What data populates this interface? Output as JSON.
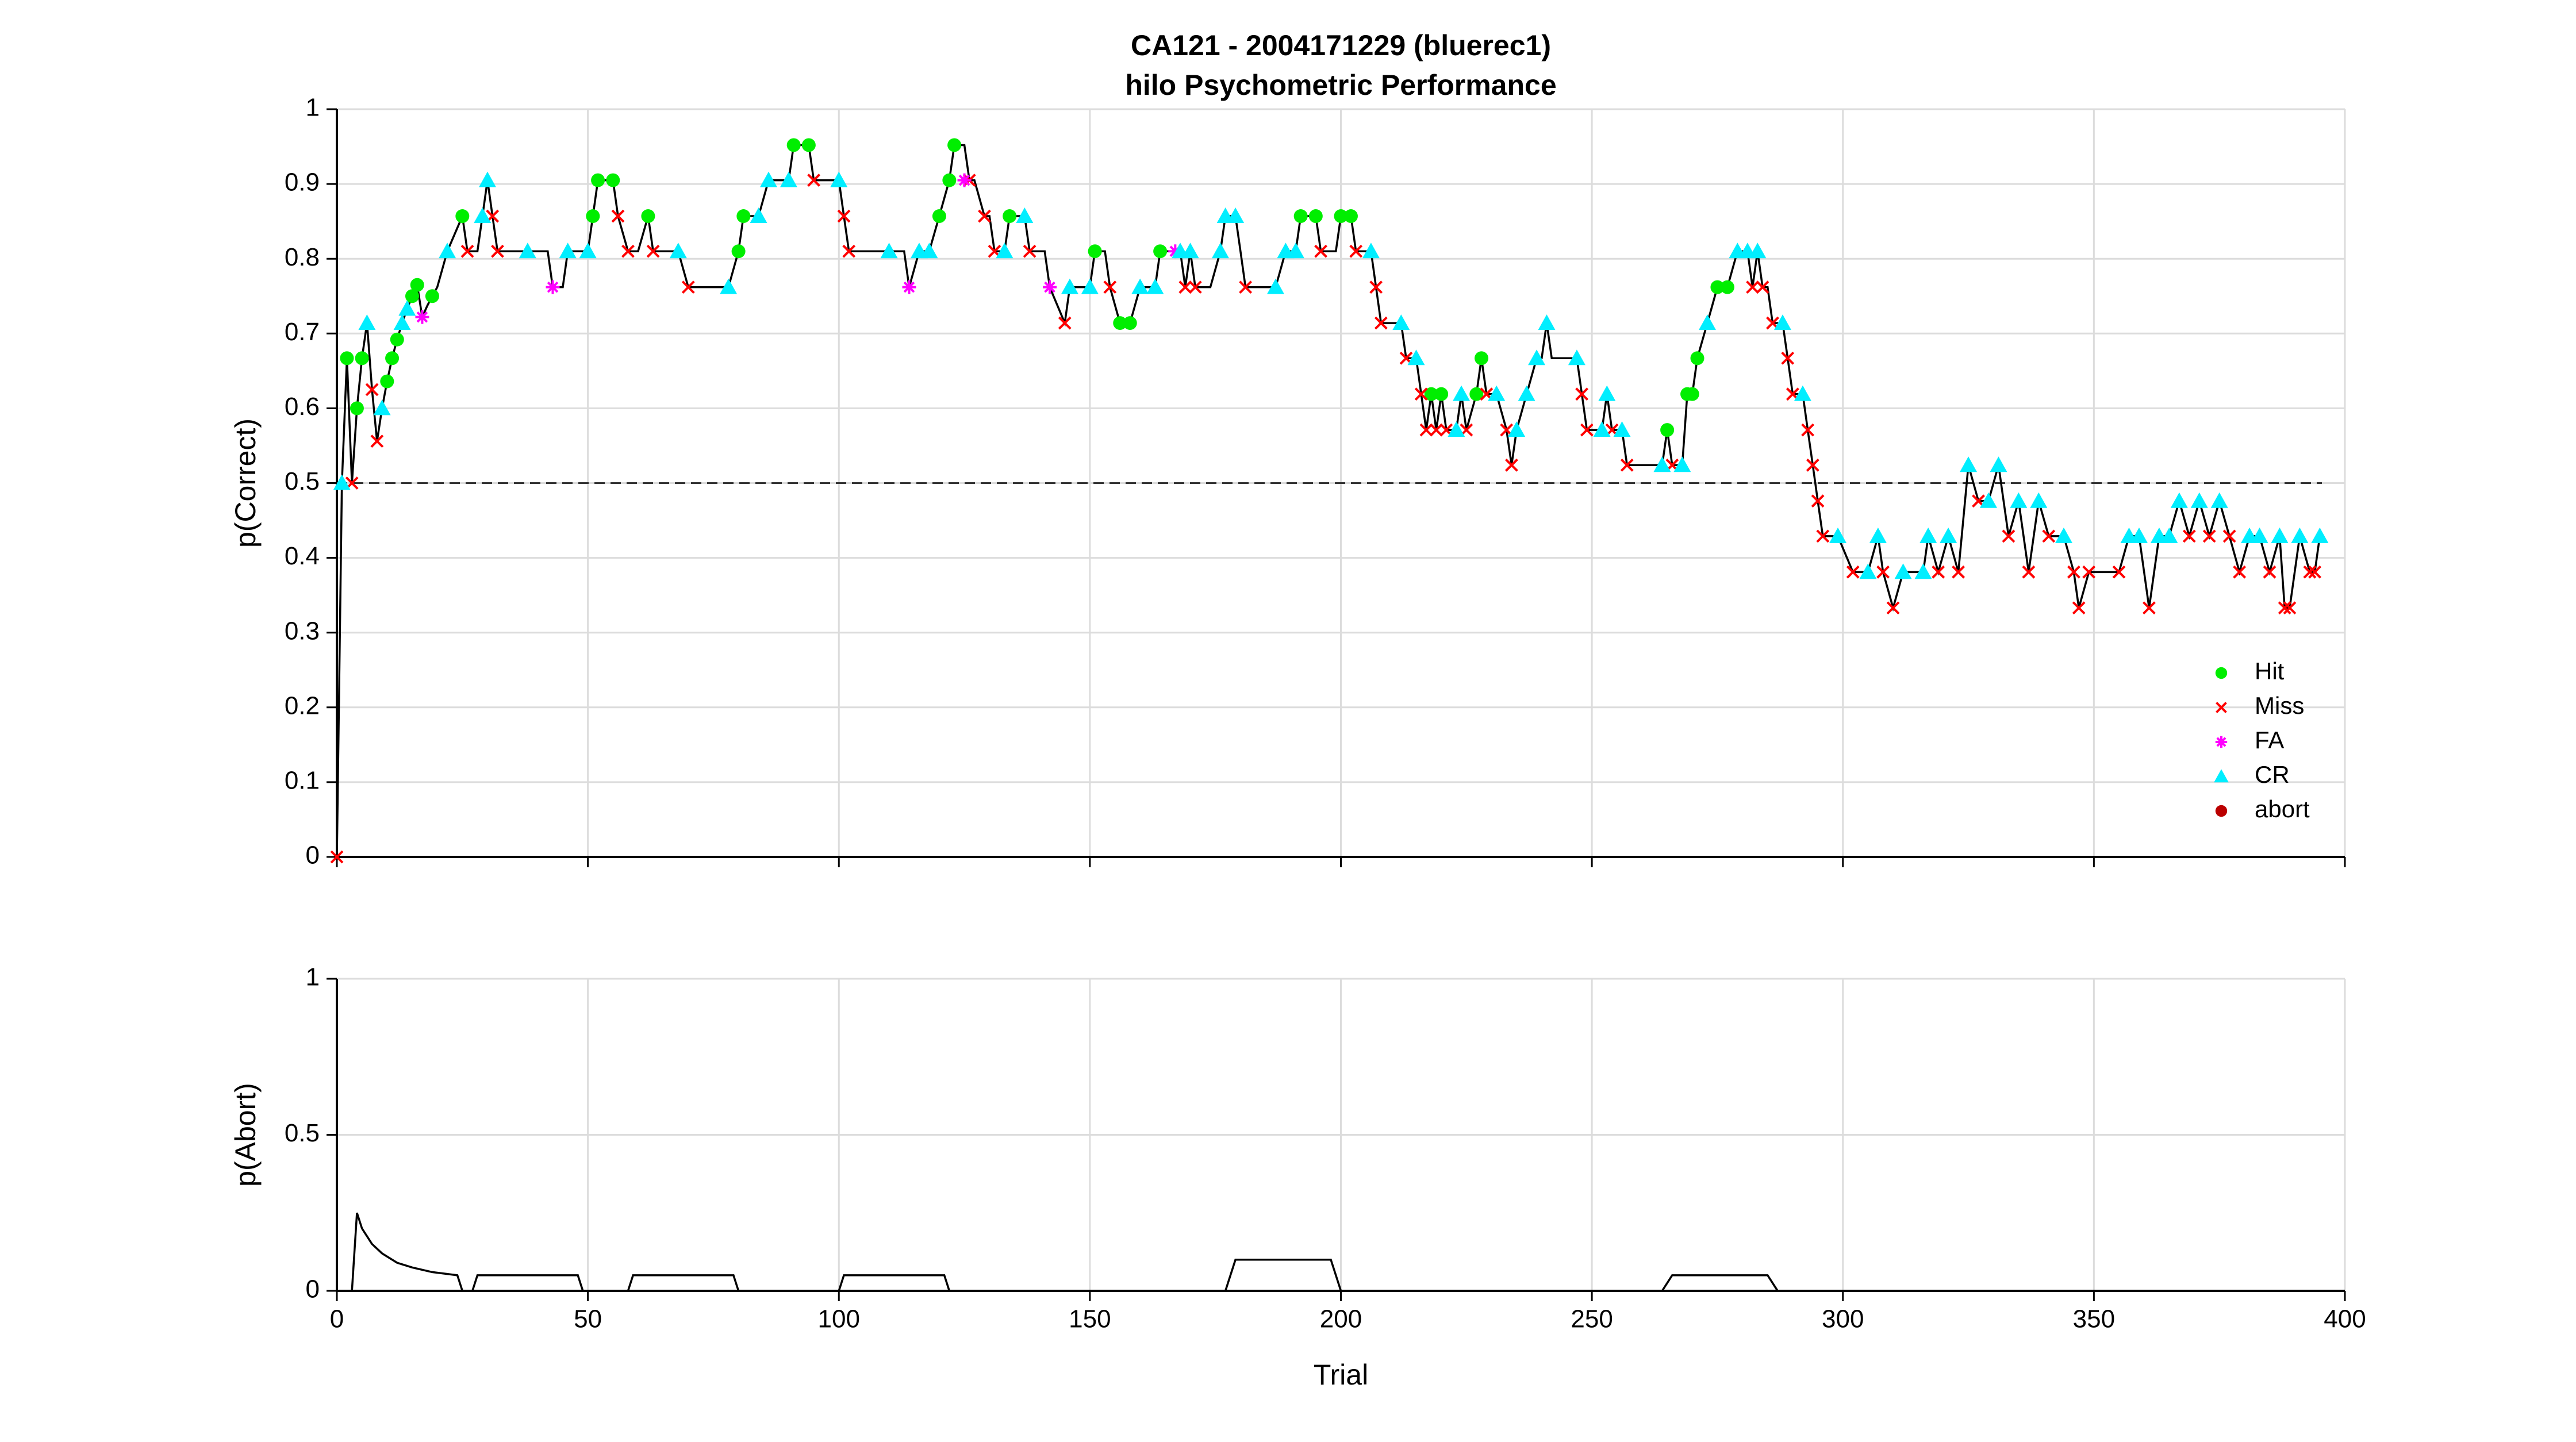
{
  "chart_data": [
    {
      "type": "line",
      "title": "CA121 - 2004171229 (bluerec1)",
      "subtitle": "hilo Psychometric Performance",
      "ylabel": "p(Correct)",
      "xlim": [
        0,
        400
      ],
      "ylim": [
        0,
        1
      ],
      "xticks": [
        0,
        50,
        100,
        150,
        200,
        250,
        300,
        350,
        400
      ],
      "show_xtick_labels": false,
      "yticks": [
        0,
        0.1,
        0.2,
        0.3,
        0.4,
        0.5,
        0.6,
        0.7,
        0.8,
        0.9,
        1
      ],
      "grid": true,
      "reference_line": {
        "y": 0.5,
        "style": "dashed",
        "color": "#333333"
      },
      "line": {
        "color": "#000000",
        "x": [
          0,
          1,
          2,
          3,
          4,
          5,
          6,
          7,
          8,
          9,
          10,
          11,
          12,
          13,
          14,
          15,
          16,
          17,
          18,
          19,
          20,
          22,
          25,
          26,
          28,
          29,
          30,
          31,
          32,
          38,
          42,
          43,
          45,
          46,
          50,
          51,
          52,
          55,
          56,
          58,
          60,
          62,
          63,
          68,
          70,
          78,
          80,
          81,
          84,
          86,
          90,
          91,
          94,
          95,
          100,
          101,
          102,
          113,
          114,
          116,
          118,
          120,
          122,
          123,
          125,
          126,
          127,
          129,
          130,
          131,
          133,
          134,
          137,
          138,
          141,
          142,
          145,
          146,
          150,
          151,
          153,
          154,
          156,
          158,
          160,
          163,
          164,
          168,
          169,
          170,
          171,
          174,
          176,
          177,
          179,
          180,
          181,
          187,
          189,
          191,
          192,
          195,
          196,
          199,
          200,
          202,
          203,
          206,
          207,
          208,
          212,
          213,
          215,
          216,
          217,
          218,
          219,
          220,
          221,
          223,
          224,
          225,
          227,
          228,
          229,
          231,
          233,
          234,
          235,
          237,
          239,
          240,
          241,
          242,
          247,
          248,
          249,
          252,
          253,
          254,
          256,
          257,
          264,
          265,
          266,
          268,
          269,
          270,
          271,
          273,
          275,
          277,
          279,
          281,
          282,
          283,
          284,
          285,
          286,
          288,
          289,
          290,
          292,
          293,
          294,
          295,
          296,
          299,
          302,
          305,
          307,
          308,
          310,
          312,
          316,
          317,
          319,
          321,
          323,
          325,
          327,
          329,
          331,
          333,
          335,
          337,
          339,
          341,
          344,
          346,
          347,
          349,
          355,
          357,
          359,
          361,
          363,
          365,
          367,
          369,
          371,
          373,
          375,
          377,
          379,
          381,
          383,
          385,
          387,
          388,
          389,
          391,
          393,
          394,
          395
        ],
        "values": [
          0,
          0.5,
          0.667,
          0.5,
          0.6,
          0.667,
          0.714,
          0.625,
          0.556,
          0.6,
          0.636,
          0.667,
          0.692,
          0.714,
          0.733,
          0.75,
          0.765,
          0.722,
          0.737,
          0.75,
          0.762,
          0.81,
          0.857,
          0.81,
          0.81,
          0.857,
          0.905,
          0.857,
          0.81,
          0.81,
          0.81,
          0.762,
          0.762,
          0.81,
          0.81,
          0.857,
          0.905,
          0.905,
          0.857,
          0.81,
          0.81,
          0.857,
          0.81,
          0.81,
          0.762,
          0.762,
          0.81,
          0.857,
          0.857,
          0.905,
          0.905,
          0.952,
          0.952,
          0.905,
          0.905,
          0.857,
          0.81,
          0.81,
          0.762,
          0.81,
          0.81,
          0.857,
          0.905,
          0.952,
          0.952,
          0.905,
          0.905,
          0.857,
          0.857,
          0.81,
          0.81,
          0.857,
          0.857,
          0.81,
          0.81,
          0.762,
          0.714,
          0.762,
          0.762,
          0.81,
          0.81,
          0.762,
          0.714,
          0.714,
          0.762,
          0.762,
          0.81,
          0.81,
          0.762,
          0.81,
          0.762,
          0.762,
          0.81,
          0.857,
          0.857,
          0.81,
          0.762,
          0.762,
          0.81,
          0.81,
          0.857,
          0.857,
          0.81,
          0.81,
          0.857,
          0.857,
          0.81,
          0.81,
          0.762,
          0.714,
          0.714,
          0.667,
          0.667,
          0.619,
          0.571,
          0.619,
          0.571,
          0.619,
          0.571,
          0.571,
          0.619,
          0.571,
          0.619,
          0.667,
          0.619,
          0.619,
          0.571,
          0.524,
          0.571,
          0.619,
          0.667,
          0.667,
          0.714,
          0.667,
          0.667,
          0.619,
          0.571,
          0.571,
          0.619,
          0.571,
          0.571,
          0.524,
          0.524,
          0.571,
          0.524,
          0.524,
          0.619,
          0.619,
          0.667,
          0.714,
          0.762,
          0.762,
          0.81,
          0.81,
          0.762,
          0.81,
          0.762,
          0.762,
          0.714,
          0.714,
          0.667,
          0.619,
          0.619,
          0.571,
          0.524,
          0.476,
          0.429,
          0.429,
          0.381,
          0.381,
          0.429,
          0.381,
          0.333,
          0.381,
          0.381,
          0.429,
          0.381,
          0.429,
          0.381,
          0.524,
          0.476,
          0.476,
          0.524,
          0.429,
          0.476,
          0.381,
          0.476,
          0.429,
          0.429,
          0.381,
          0.333,
          0.381,
          0.381,
          0.429,
          0.429,
          0.333,
          0.429,
          0.429,
          0.476,
          0.429,
          0.476,
          0.429,
          0.476,
          0.429,
          0.381,
          0.429,
          0.429,
          0.381,
          0.429,
          0.333,
          0.333,
          0.429,
          0.381,
          0.381,
          0.429
        ]
      },
      "legend": "lower right",
      "series": [
        {
          "name": "Hit",
          "color": "#00ee00",
          "marker": "circle",
          "x": [
            2,
            4,
            5,
            10,
            11,
            12,
            15,
            16,
            19,
            25,
            51,
            52,
            55,
            62,
            80,
            81,
            91,
            94,
            120,
            122,
            123,
            134,
            151,
            156,
            158,
            164,
            192,
            195,
            200,
            202,
            218,
            220,
            227,
            228,
            265,
            269,
            270,
            271,
            275,
            277
          ],
          "values": [
            0.667,
            0.6,
            0.667,
            0.636,
            0.667,
            0.692,
            0.75,
            0.765,
            0.75,
            0.857,
            0.857,
            0.905,
            0.905,
            0.857,
            0.81,
            0.857,
            0.952,
            0.952,
            0.857,
            0.905,
            0.952,
            0.857,
            0.81,
            0.714,
            0.714,
            0.81,
            0.857,
            0.857,
            0.857,
            0.857,
            0.619,
            0.619,
            0.619,
            0.667,
            0.571,
            0.619,
            0.619,
            0.667,
            0.762,
            0.762
          ]
        },
        {
          "name": "Miss",
          "color": "#ff0000",
          "marker": "x",
          "x": [
            0,
            3,
            7,
            8,
            26,
            31,
            32,
            56,
            58,
            63,
            70,
            95,
            101,
            102,
            126,
            129,
            131,
            138,
            145,
            154,
            169,
            171,
            181,
            196,
            203,
            207,
            208,
            213,
            216,
            217,
            219,
            221,
            225,
            229,
            233,
            234,
            248,
            249,
            254,
            257,
            266,
            282,
            284,
            286,
            289,
            290,
            293,
            294,
            295,
            296,
            302,
            308,
            310,
            319,
            323,
            327,
            333,
            337,
            341,
            346,
            347,
            349,
            355,
            361,
            369,
            373,
            377,
            379,
            385,
            388,
            389,
            393,
            394
          ],
          "values": [
            0,
            0.5,
            0.625,
            0.556,
            0.81,
            0.857,
            0.81,
            0.857,
            0.81,
            0.81,
            0.762,
            0.905,
            0.857,
            0.81,
            0.905,
            0.857,
            0.81,
            0.81,
            0.714,
            0.762,
            0.762,
            0.762,
            0.762,
            0.81,
            0.81,
            0.762,
            0.714,
            0.667,
            0.619,
            0.571,
            0.571,
            0.571,
            0.571,
            0.619,
            0.571,
            0.524,
            0.619,
            0.571,
            0.571,
            0.524,
            0.524,
            0.762,
            0.762,
            0.714,
            0.667,
            0.619,
            0.571,
            0.524,
            0.476,
            0.429,
            0.381,
            0.381,
            0.333,
            0.381,
            0.381,
            0.476,
            0.429,
            0.381,
            0.429,
            0.381,
            0.333,
            0.381,
            0.381,
            0.333,
            0.429,
            0.429,
            0.429,
            0.381,
            0.381,
            0.333,
            0.333,
            0.381,
            0.381
          ]
        },
        {
          "name": "FA",
          "color": "#ff00ff",
          "marker": "asterisk",
          "x": [
            17,
            43,
            114,
            125,
            142,
            167
          ],
          "values": [
            0.722,
            0.762,
            0.762,
            0.905,
            0.762,
            0.81
          ]
        },
        {
          "name": "CR",
          "color": "#00eeff",
          "marker": "triangle",
          "x": [
            1,
            6,
            9,
            13,
            14,
            22,
            29,
            30,
            38,
            46,
            50,
            68,
            78,
            84,
            86,
            90,
            100,
            110,
            116,
            118,
            133,
            137,
            146,
            150,
            160,
            163,
            168,
            170,
            176,
            177,
            179,
            187,
            189,
            191,
            206,
            212,
            215,
            223,
            224,
            231,
            235,
            237,
            239,
            241,
            247,
            252,
            253,
            256,
            264,
            268,
            273,
            279,
            281,
            283,
            288,
            292,
            299,
            305,
            307,
            312,
            316,
            317,
            321,
            325,
            329,
            331,
            335,
            339,
            344,
            357,
            359,
            363,
            365,
            367,
            371,
            375,
            381,
            383,
            387,
            391,
            395
          ],
          "values": [
            0.5,
            0.714,
            0.6,
            0.714,
            0.733,
            0.81,
            0.857,
            0.905,
            0.81,
            0.81,
            0.81,
            0.81,
            0.762,
            0.857,
            0.905,
            0.905,
            0.905,
            0.81,
            0.81,
            0.81,
            0.81,
            0.857,
            0.762,
            0.762,
            0.762,
            0.762,
            0.81,
            0.81,
            0.81,
            0.857,
            0.857,
            0.762,
            0.81,
            0.81,
            0.81,
            0.714,
            0.667,
            0.571,
            0.619,
            0.619,
            0.571,
            0.619,
            0.667,
            0.714,
            0.667,
            0.571,
            0.619,
            0.571,
            0.524,
            0.524,
            0.714,
            0.81,
            0.81,
            0.81,
            0.714,
            0.619,
            0.429,
            0.381,
            0.429,
            0.381,
            0.381,
            0.429,
            0.429,
            0.524,
            0.476,
            0.524,
            0.476,
            0.476,
            0.429,
            0.429,
            0.429,
            0.429,
            0.429,
            0.476,
            0.476,
            0.476,
            0.429,
            0.429,
            0.429,
            0.429,
            0.429
          ]
        },
        {
          "name": "abort",
          "color": "#bb0000",
          "marker": "circle",
          "x": [],
          "values": []
        }
      ]
    },
    {
      "type": "line",
      "ylabel": "p(Abort)",
      "xlabel": "Trial",
      "xlim": [
        0,
        400
      ],
      "ylim": [
        0,
        1
      ],
      "xticks": [
        0,
        50,
        100,
        150,
        200,
        250,
        300,
        350,
        400
      ],
      "yticks": [
        0,
        0.5,
        1
      ],
      "grid": true,
      "line": {
        "color": "#000000",
        "x": [
          3,
          4,
          5,
          7,
          9,
          12,
          15,
          19,
          24,
          25,
          27,
          28,
          48,
          49,
          58,
          59,
          79,
          80,
          100,
          101,
          121,
          122,
          177,
          179,
          198,
          200,
          264,
          266,
          285,
          287
        ],
        "values": [
          0,
          0.25,
          0.2,
          0.15,
          0.12,
          0.09,
          0.075,
          0.06,
          0.05,
          0,
          0,
          0.05,
          0.05,
          0,
          0,
          0.05,
          0.05,
          0,
          0,
          0.05,
          0.05,
          0,
          0,
          0.1,
          0.1,
          0,
          0,
          0.05,
          0.05,
          0
        ]
      }
    }
  ]
}
